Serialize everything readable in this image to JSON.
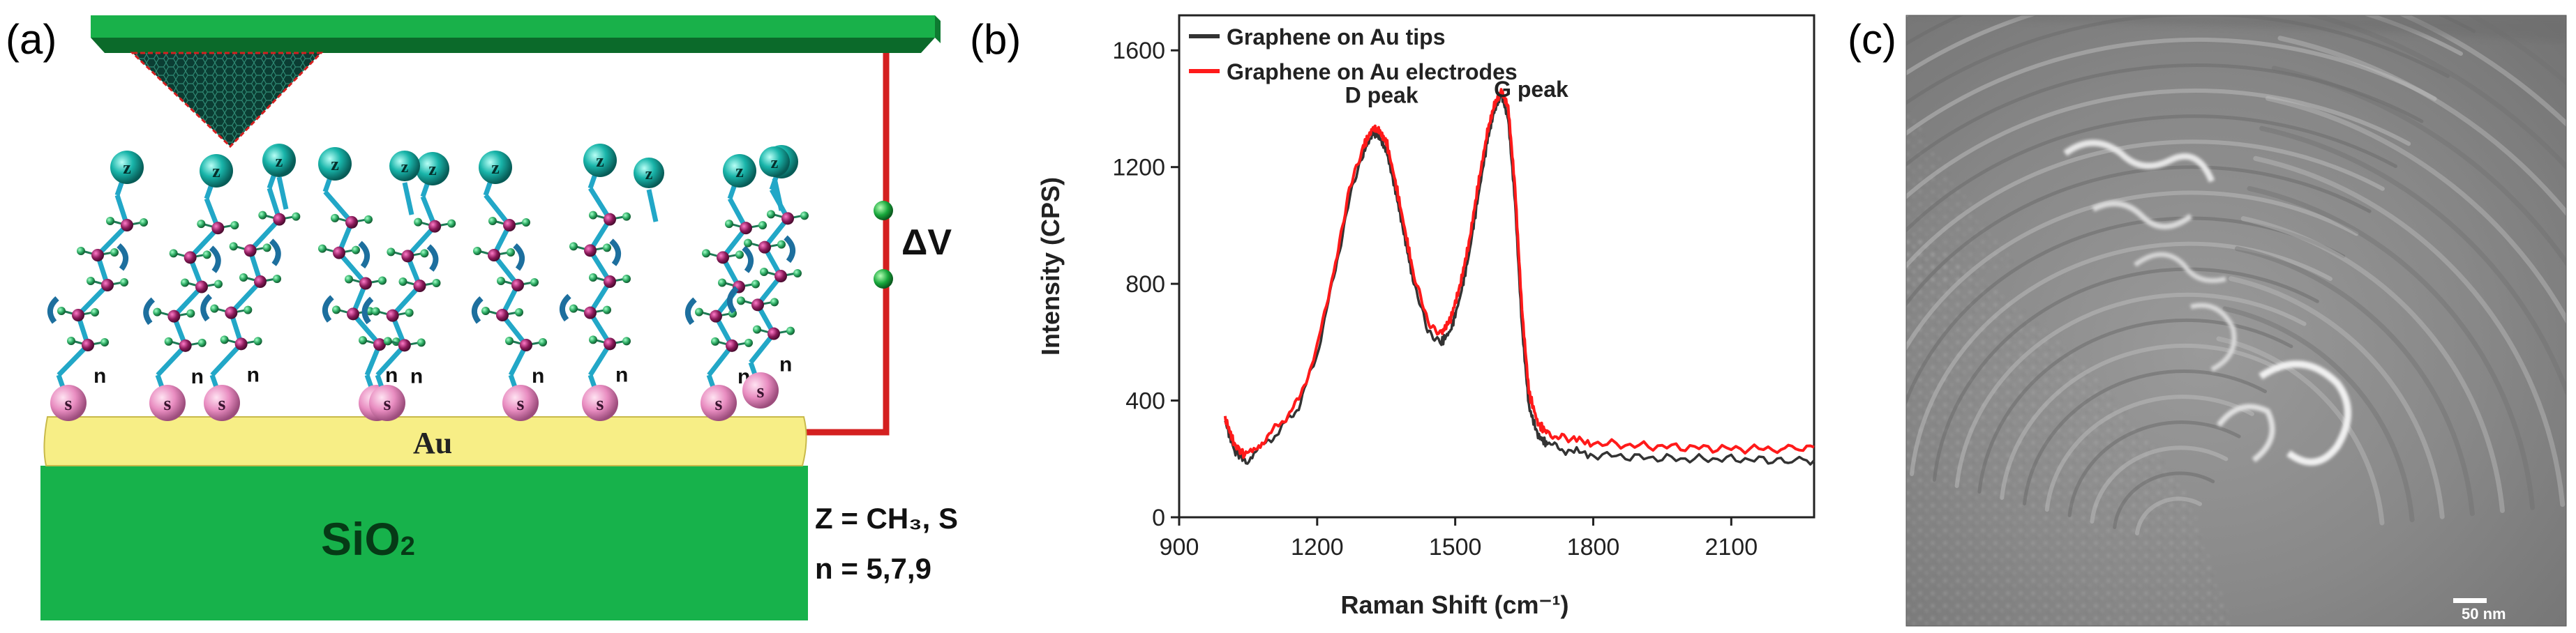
{
  "figure": {
    "panel_a": {
      "label": "(a)",
      "substrate_label": "SiO",
      "substrate_subscript": "2",
      "gold_label": "Au",
      "voltage_label": "ΔV",
      "atom_top": "z",
      "atom_bottom": "s",
      "chain_repeat": "n",
      "z_definition": "Z = CH₃, S",
      "n_definition": "n = 5,7,9",
      "colors": {
        "substrate": "#17b24b",
        "gold": "#f7ee86",
        "wire": "#d42020",
        "sulfur_atom": "#e88cc0",
        "z_atom": "#16a39a",
        "bond": "#22a7c7",
        "carbon": "#8b1a5a",
        "hydrogen": "#2aa860",
        "tip": "#0b3d33"
      }
    },
    "panel_b": {
      "label": "(b)",
      "chart_data": {
        "type": "line",
        "title": "",
        "xlabel": "Raman Shift (cm⁻¹)",
        "ylabel": "Intensity (CPS)",
        "xlim": [
          900,
          2280
        ],
        "ylim": [
          0,
          1720
        ],
        "xticks": [
          "900",
          "1200",
          "1500",
          "1800",
          "2100"
        ],
        "xtick_values": [
          900,
          1200,
          1500,
          1800,
          2100
        ],
        "yticks": [
          "0",
          "400",
          "800",
          "1200",
          "1600"
        ],
        "ytick_values": [
          0,
          400,
          800,
          1200,
          1600
        ],
        "grid": false,
        "legend_position": "top-left",
        "annotations": [
          {
            "text": "D peak",
            "x": 1340,
            "y": 1420
          },
          {
            "text": "G peak",
            "x": 1665,
            "y": 1440
          }
        ],
        "series": [
          {
            "name": "Graphene on Au tips",
            "color": "#333333",
            "x": [
              1000,
              1020,
              1045,
              1080,
              1120,
              1160,
              1200,
              1240,
              1270,
              1300,
              1320,
              1335,
              1350,
              1370,
              1390,
              1410,
              1440,
              1470,
              1490,
              1510,
              1530,
              1550,
              1570,
              1585,
              1600,
              1615,
              1630,
              1645,
              1660,
              1680,
              1700,
              1740,
              1800,
              1900,
              2000,
              2100,
              2200,
              2280
            ],
            "y": [
              330,
              230,
              190,
              240,
              300,
              380,
              560,
              850,
              1090,
              1250,
              1310,
              1310,
              1260,
              1120,
              960,
              800,
              640,
              600,
              640,
              750,
              900,
              1100,
              1290,
              1400,
              1450,
              1360,
              1080,
              660,
              380,
              280,
              250,
              230,
              215,
              205,
              200,
              200,
              195,
              195
            ]
          },
          {
            "name": "Graphene on Au electrodes",
            "color": "#ff1a1a",
            "x": [
              1000,
              1020,
              1045,
              1080,
              1120,
              1160,
              1200,
              1240,
              1270,
              1300,
              1320,
              1335,
              1350,
              1370,
              1390,
              1410,
              1440,
              1470,
              1490,
              1510,
              1530,
              1550,
              1570,
              1585,
              1600,
              1615,
              1630,
              1645,
              1660,
              1680,
              1700,
              1740,
              1800,
              1900,
              2000,
              2100,
              2200,
              2280
            ],
            "y": [
              340,
              250,
              210,
              260,
              320,
              400,
              580,
              880,
              1120,
              1270,
              1330,
              1330,
              1290,
              1150,
              990,
              830,
              670,
              630,
              680,
              790,
              940,
              1140,
              1320,
              1420,
              1460,
              1400,
              1130,
              720,
              430,
              320,
              290,
              270,
              255,
              245,
              240,
              235,
              235,
              240
            ]
          }
        ]
      }
    },
    "panel_c": {
      "label": "(c)",
      "scale_bar_label": "50 nm",
      "image_description_icon": "sem-micrograph"
    }
  }
}
